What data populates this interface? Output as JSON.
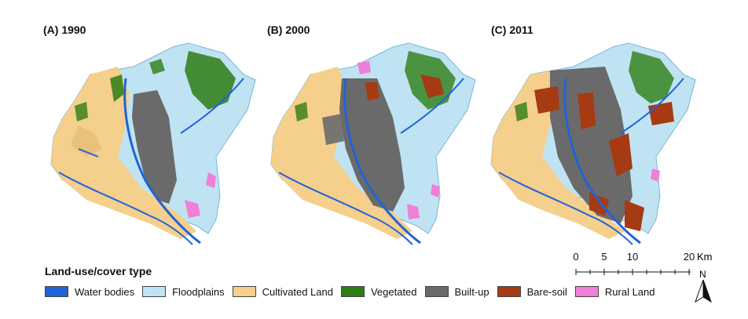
{
  "panels": [
    {
      "title": "(A) 1990"
    },
    {
      "title": "(B) 2000"
    },
    {
      "title": "(C) 2011"
    }
  ],
  "legend": {
    "title": "Land-use/cover type",
    "items": [
      {
        "label": "Water bodies",
        "color": "#1f63d8"
      },
      {
        "label": "Floodplains",
        "color": "#bfe3f3"
      },
      {
        "label": "Cultivated Land",
        "color": "#f5cf8c"
      },
      {
        "label": "Vegetated",
        "color": "#2e7d14"
      },
      {
        "label": "Built-up",
        "color": "#6a6a6a"
      },
      {
        "label": "Bare-soil",
        "color": "#a63a12"
      },
      {
        "label": "Rural Land",
        "color": "#f07fd8"
      }
    ]
  },
  "scale_bar": {
    "labels": [
      "0",
      "5",
      "10",
      "20"
    ],
    "unit": "Km"
  },
  "north_arrow": {
    "label": "N"
  }
}
